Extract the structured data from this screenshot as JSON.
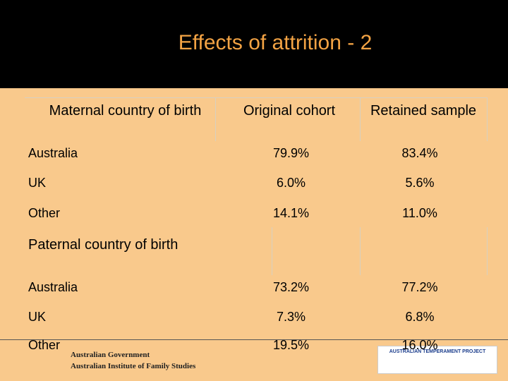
{
  "title": "Effects of attrition - 2",
  "table": {
    "header": [
      "Maternal country of birth",
      "Original cohort",
      "Retained sample"
    ],
    "rows": [
      [
        "Australia",
        "79.9%",
        "83.4%"
      ],
      [
        "UK",
        "6.0%",
        "5.6%"
      ],
      [
        "Other",
        "14.1%",
        "11.0%"
      ],
      [
        "Paternal country of birth"
      ],
      [
        "Australia",
        "73.2%",
        "77.2%"
      ],
      [
        "UK",
        "7.3%",
        "6.8%"
      ],
      [
        "Other",
        "19.5%",
        "16.0%"
      ]
    ]
  },
  "footer": {
    "left": [
      "Australian Government",
      "Australian Institute of Family Studies"
    ],
    "right": "AUSTRALIAN TEMPERAMENT PROJECT"
  }
}
